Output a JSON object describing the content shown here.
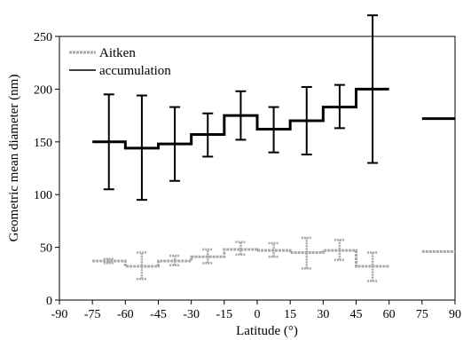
{
  "chart_data": {
    "type": "line",
    "xlabel": "Latitude  (°)",
    "ylabel": "Geometric mean diameter  (nm)",
    "xlim": [
      -90,
      90
    ],
    "ylim": [
      0,
      250
    ],
    "xticks": [
      "-90",
      "-75",
      "-60",
      "-45",
      "-30",
      "-15",
      "0",
      "15",
      "30",
      "45",
      "60",
      "75",
      "90"
    ],
    "yticks": [
      "0",
      "50",
      "100",
      "150",
      "200",
      "250"
    ],
    "grid": false,
    "legend": "top-left",
    "series": [
      {
        "name": "Aitken",
        "color": "#a8a8a8",
        "style": "dashed-gray",
        "x_bins": [
          [
            -75,
            -60
          ],
          [
            -60,
            -45
          ],
          [
            -45,
            -30
          ],
          [
            -30,
            -15
          ],
          [
            -15,
            0
          ],
          [
            0,
            15
          ],
          [
            15,
            30
          ],
          [
            30,
            45
          ],
          [
            45,
            60
          ]
        ],
        "values": [
          37,
          32,
          37,
          41,
          48,
          47,
          45,
          47,
          32
        ],
        "err_low": [
          35,
          20,
          33,
          35,
          43,
          41,
          30,
          38,
          18
        ],
        "err_high": [
          39,
          45,
          42,
          48,
          55,
          54,
          59,
          57,
          45
        ],
        "extra": {
          "x_range": [
            75,
            90
          ],
          "value": 46
        }
      },
      {
        "name": "accumulation",
        "color": "#000000",
        "style": "solid-black",
        "x_bins": [
          [
            -75,
            -60
          ],
          [
            -60,
            -45
          ],
          [
            -45,
            -30
          ],
          [
            -30,
            -15
          ],
          [
            -15,
            0
          ],
          [
            0,
            15
          ],
          [
            15,
            30
          ],
          [
            30,
            45
          ],
          [
            45,
            60
          ]
        ],
        "values": [
          150,
          144,
          148,
          157,
          175,
          162,
          170,
          183,
          200
        ],
        "err_low": [
          105,
          95,
          113,
          136,
          152,
          140,
          138,
          163,
          130
        ],
        "err_high": [
          195,
          194,
          183,
          177,
          198,
          183,
          202,
          204,
          270
        ],
        "extra": {
          "x_range": [
            75,
            90
          ],
          "value": 172
        }
      }
    ]
  }
}
